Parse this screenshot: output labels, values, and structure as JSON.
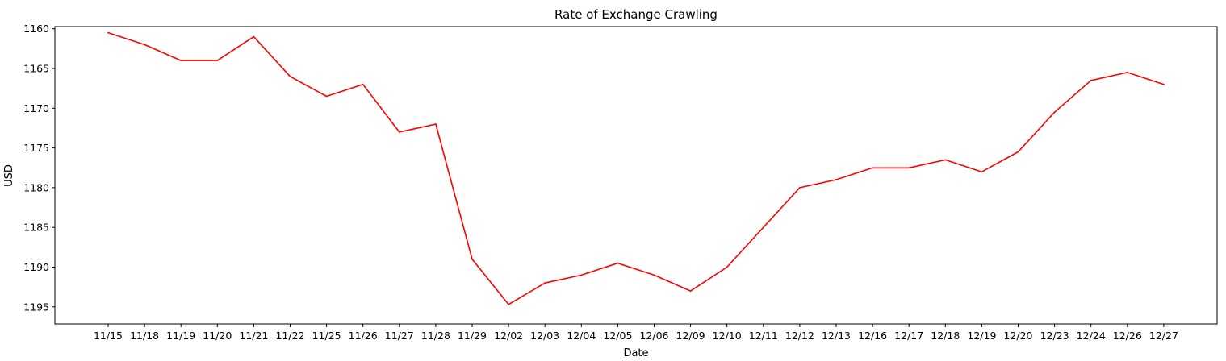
{
  "chart_data": {
    "type": "line",
    "title": "Rate of Exchange Crawling",
    "xlabel": "Date",
    "ylabel": "USD",
    "y_inverted": true,
    "ylim": [
      1160,
      1195
    ],
    "yticks": [
      1160,
      1165,
      1170,
      1175,
      1180,
      1185,
      1190,
      1195
    ],
    "grid": false,
    "legend": "none",
    "line_color": "#ff0000",
    "categories": [
      "11/15",
      "11/18",
      "11/19",
      "11/20",
      "11/21",
      "11/22",
      "11/25",
      "11/26",
      "11/27",
      "11/28",
      "11/29",
      "12/02",
      "12/03",
      "12/04",
      "12/05",
      "12/06",
      "12/09",
      "12/10",
      "12/11",
      "12/12",
      "12/13",
      "12/16",
      "12/17",
      "12/18",
      "12/19",
      "12/20",
      "12/23",
      "12/24",
      "12/26",
      "12/27"
    ],
    "series": [
      {
        "values": [
          1160.5,
          1162.0,
          1164.0,
          1164.0,
          1161.0,
          1166.0,
          1168.5,
          1167.0,
          1173.0,
          1172.0,
          1189.0,
          1194.7,
          1192.0,
          1191.0,
          1189.5,
          1191.0,
          1193.0,
          1190.0,
          1185.0,
          1180.0,
          1179.0,
          1177.5,
          1177.5,
          1176.5,
          1178.0,
          1175.5,
          1170.5,
          1166.5,
          1165.5,
          1167.0
        ]
      }
    ]
  }
}
